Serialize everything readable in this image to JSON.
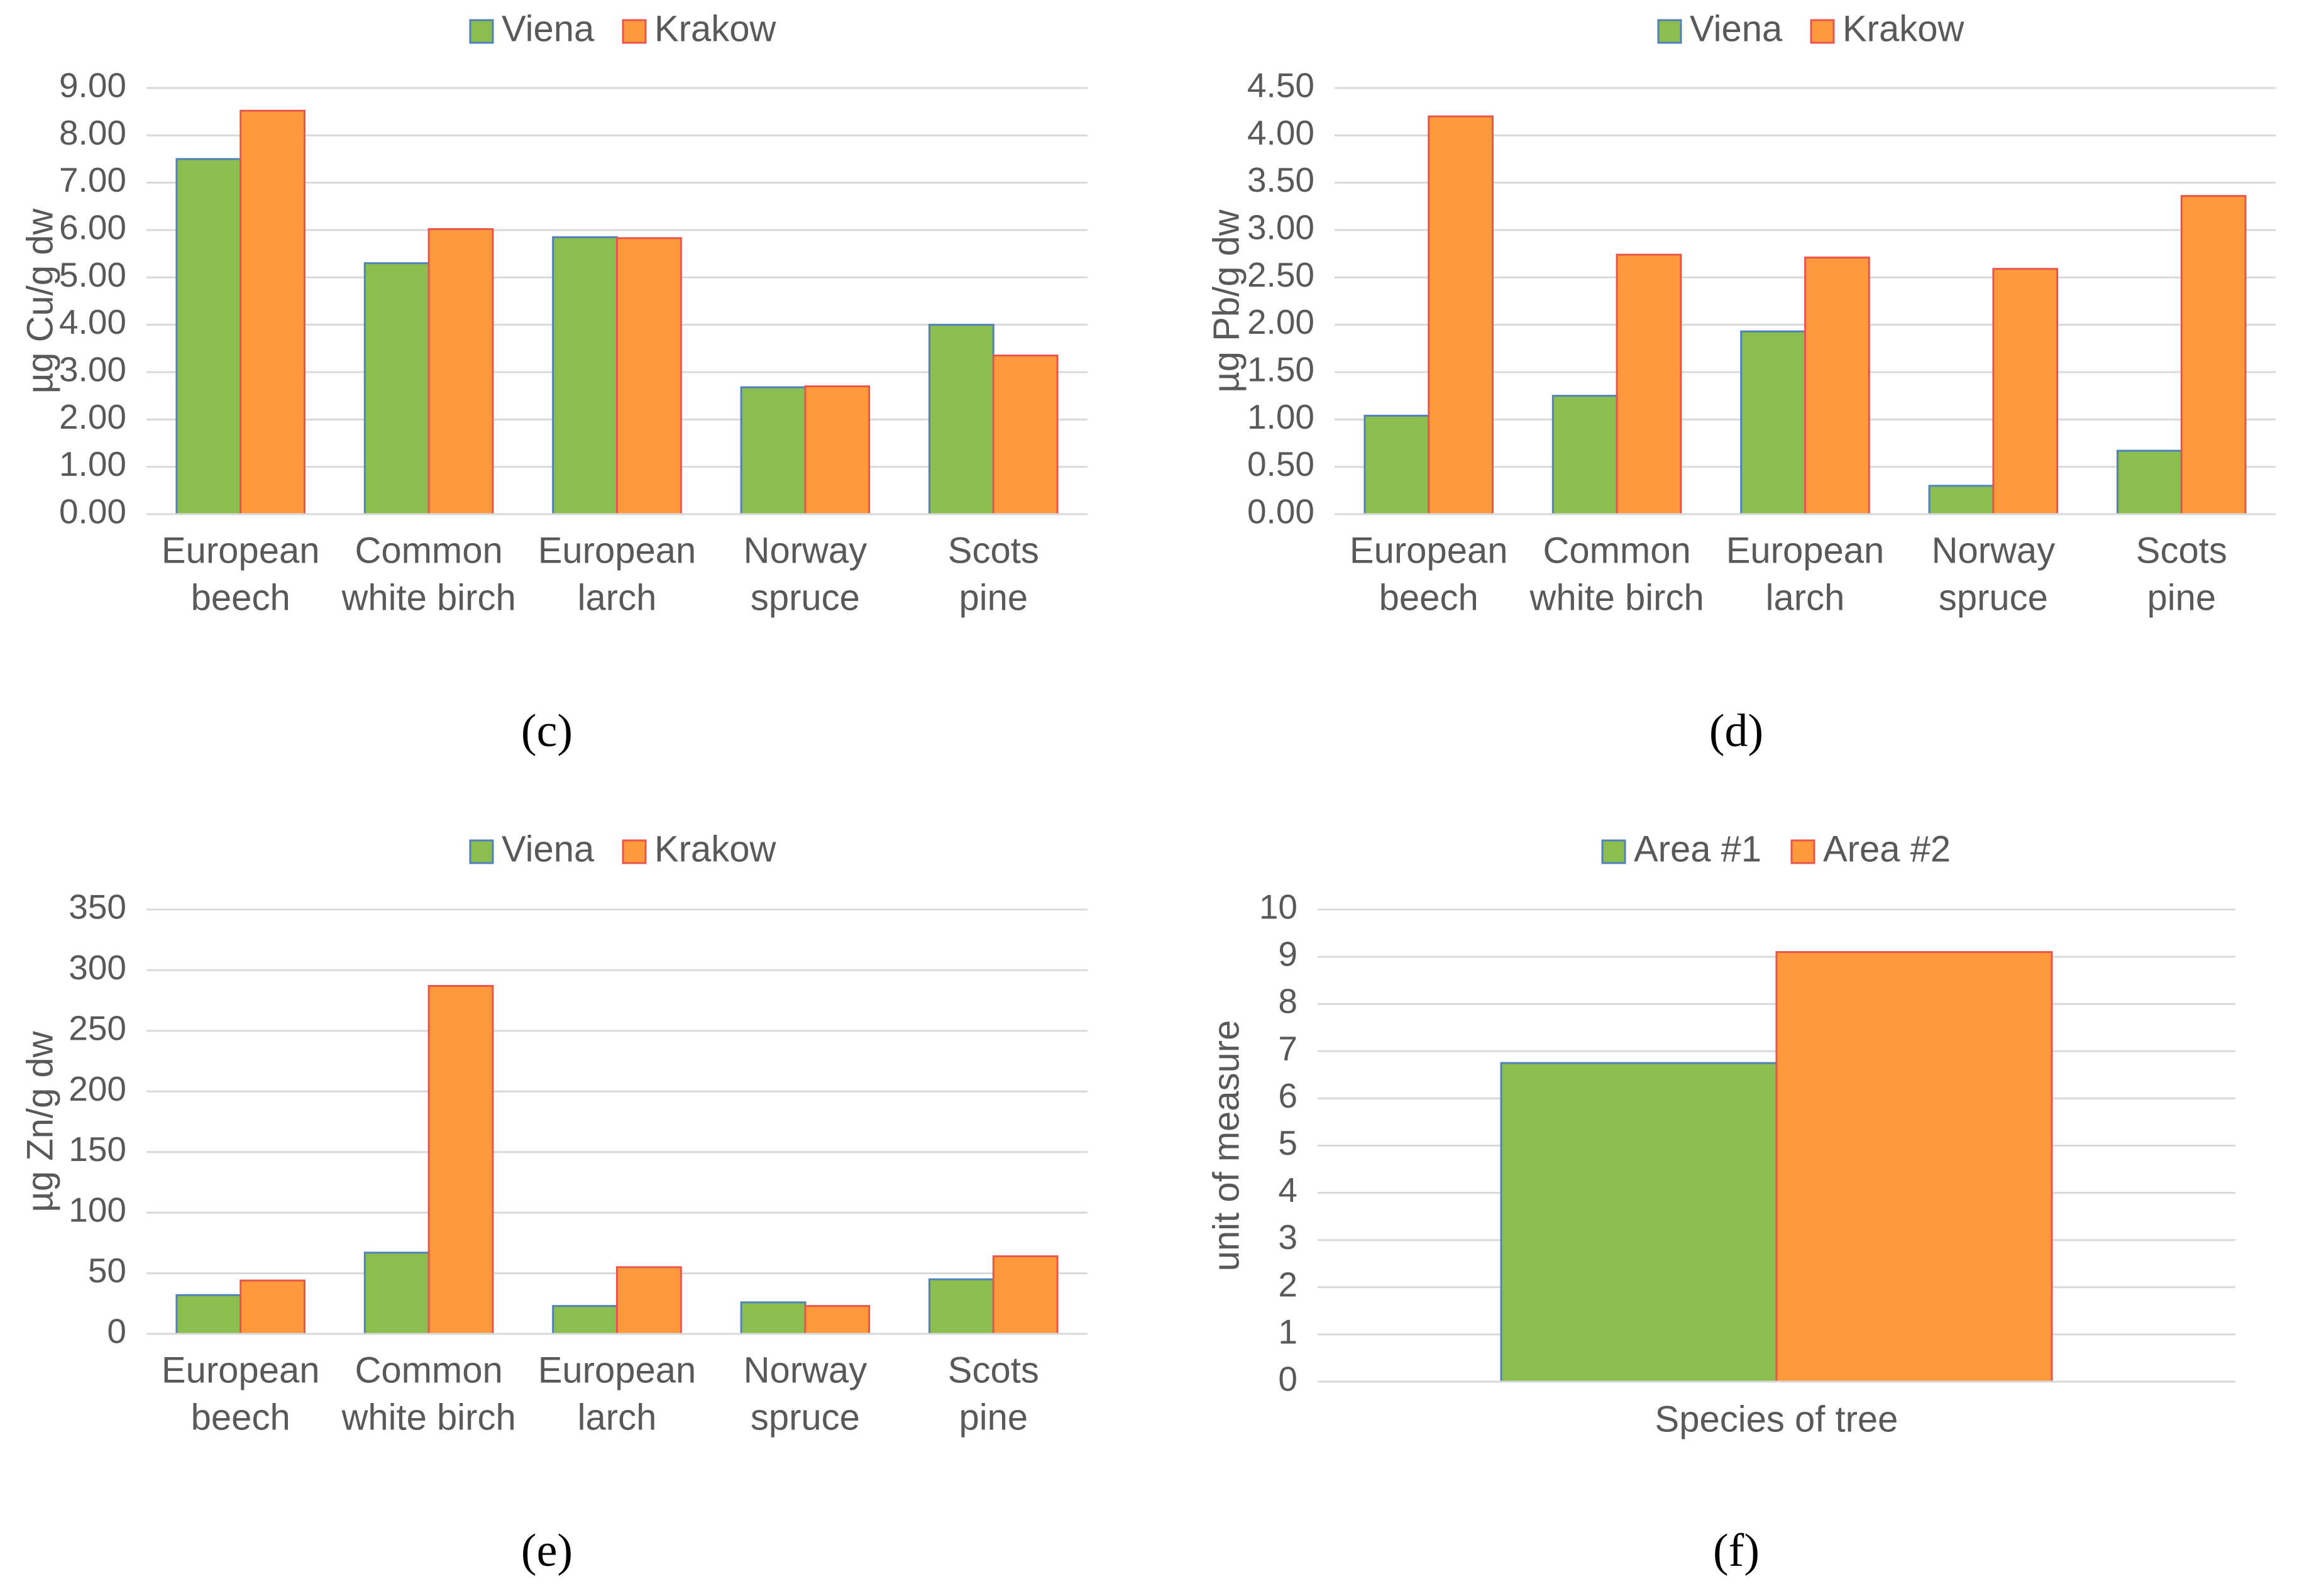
{
  "colors": {
    "series1": "#8CBD4F",
    "series1_edge": "#4F81BD",
    "series2": "#FF9A3C",
    "series2_edge": "#E8554A",
    "grid": "#D9D9D9",
    "text": "#595959"
  },
  "chart_data": [
    {
      "panel": "c",
      "caption": "(c)",
      "type": "bar",
      "title": "",
      "ylabel": "µg Cu/g dw",
      "xlabel": "",
      "ylim": [
        0,
        9
      ],
      "yticks": [
        "0.00",
        "1.00",
        "2.00",
        "3.00",
        "4.00",
        "5.00",
        "6.00",
        "7.00",
        "8.00",
        "9.00"
      ],
      "categories": [
        [
          "European",
          "beech"
        ],
        [
          "Common",
          "white birch"
        ],
        [
          "European",
          "larch"
        ],
        [
          "Norway",
          "spruce"
        ],
        [
          "Scots",
          "pine"
        ]
      ],
      "series": [
        {
          "name": "Viena",
          "values": [
            7.5,
            5.3,
            5.85,
            2.68,
            4.0
          ]
        },
        {
          "name": "Krakow",
          "values": [
            8.52,
            6.02,
            5.83,
            2.7,
            3.35
          ]
        }
      ],
      "legend": "top-center",
      "grid": true
    },
    {
      "panel": "d",
      "caption": "(d)",
      "type": "bar",
      "title": "",
      "ylabel": "µg Pb/g dw",
      "xlabel": "",
      "ylim": [
        0,
        4.5
      ],
      "yticks": [
        "0.00",
        "0.50",
        "1.00",
        "1.50",
        "2.00",
        "2.50",
        "3.00",
        "3.50",
        "4.00",
        "4.50"
      ],
      "categories": [
        [
          "European",
          "beech"
        ],
        [
          "Common",
          "white birch"
        ],
        [
          "European",
          "larch"
        ],
        [
          "Norway",
          "spruce"
        ],
        [
          "Scots",
          "pine"
        ]
      ],
      "series": [
        {
          "name": "Viena",
          "values": [
            1.04,
            1.25,
            1.93,
            0.3,
            0.67
          ]
        },
        {
          "name": "Krakow",
          "values": [
            4.2,
            2.74,
            2.71,
            2.59,
            3.36
          ]
        }
      ],
      "legend": "top-center",
      "grid": true
    },
    {
      "panel": "e",
      "caption": "(e)",
      "type": "bar",
      "title": "",
      "ylabel": "µg Zn/g dw",
      "xlabel": "",
      "ylim": [
        0,
        350
      ],
      "yticks": [
        "0",
        "50",
        "100",
        "150",
        "200",
        "250",
        "300",
        "350"
      ],
      "categories": [
        [
          "European",
          "beech"
        ],
        [
          "Common",
          "white birch"
        ],
        [
          "European",
          "larch"
        ],
        [
          "Norway",
          "spruce"
        ],
        [
          "Scots",
          "pine"
        ]
      ],
      "series": [
        {
          "name": "Viena",
          "values": [
            32,
            67,
            23,
            26,
            45
          ]
        },
        {
          "name": "Krakow",
          "values": [
            44,
            287,
            55,
            23,
            64
          ]
        }
      ],
      "legend": "top-center",
      "grid": true
    },
    {
      "panel": "f",
      "caption": "(f)",
      "type": "bar",
      "title": "",
      "ylabel": "unit of measure",
      "xlabel": "",
      "ylim": [
        0,
        10
      ],
      "yticks": [
        "0",
        "1",
        "2",
        "3",
        "4",
        "5",
        "6",
        "7",
        "8",
        "9",
        "10"
      ],
      "categories": [
        [
          "Species of tree"
        ]
      ],
      "series": [
        {
          "name": "Area #1",
          "values": [
            6.75
          ]
        },
        {
          "name": "Area #2",
          "values": [
            9.1
          ]
        }
      ],
      "legend": "top-center",
      "grid": true
    }
  ]
}
